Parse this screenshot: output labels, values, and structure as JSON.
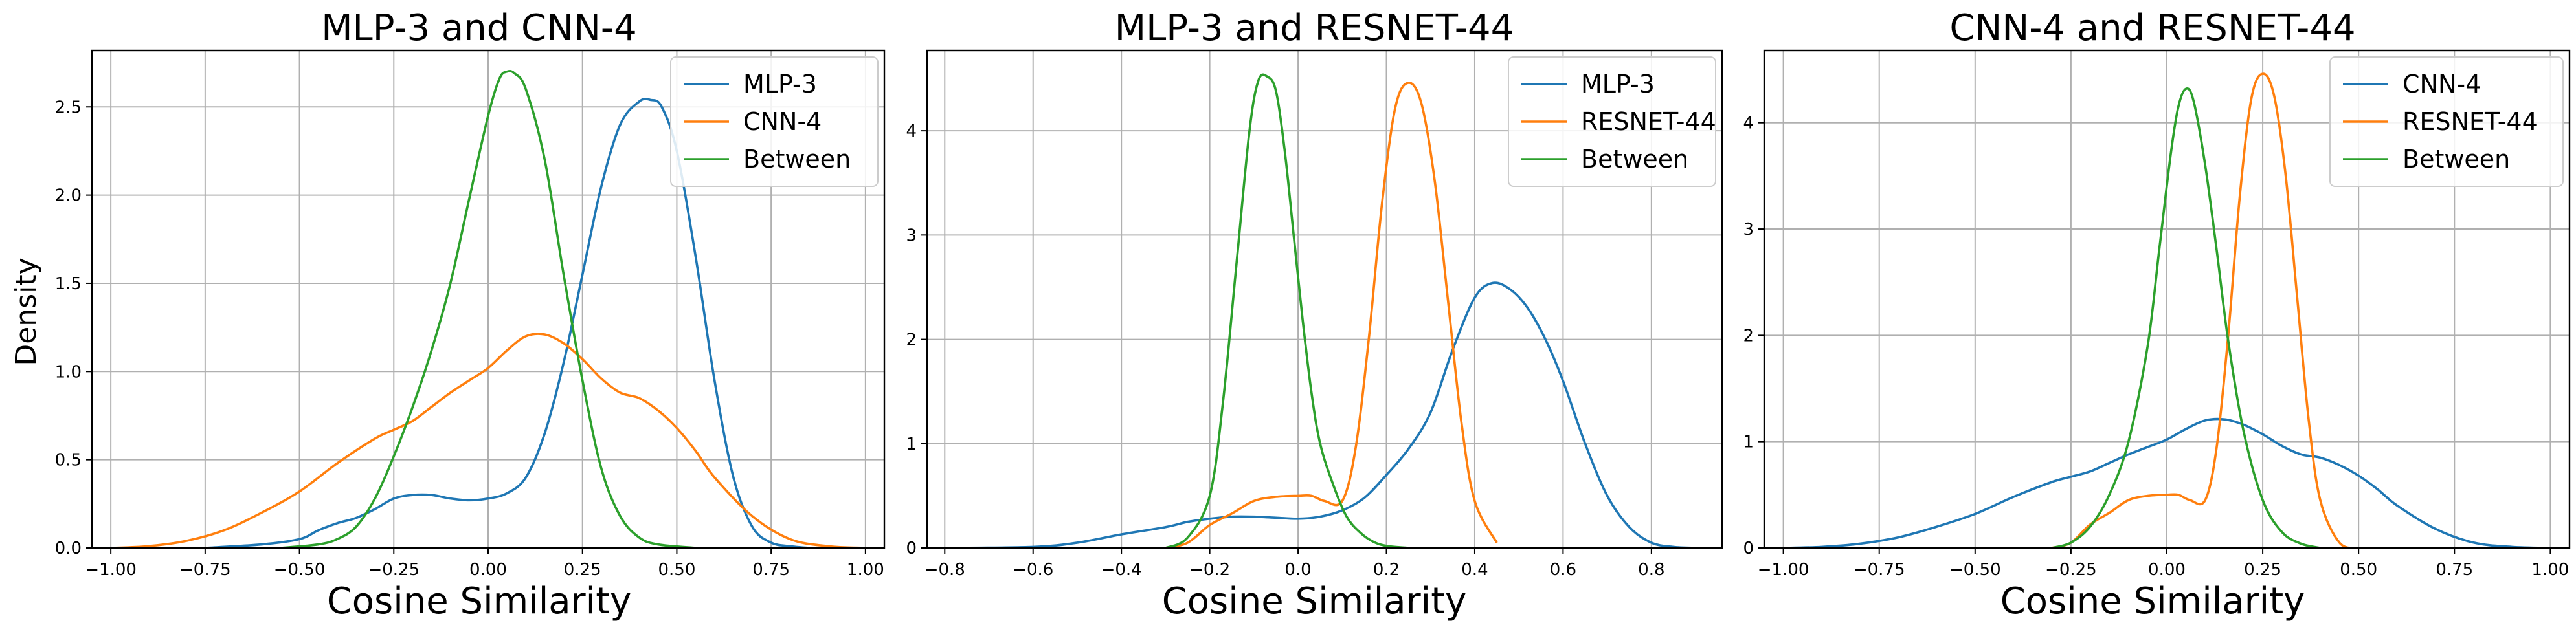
{
  "chart_data": [
    {
      "type": "line",
      "title": "MLP-3 and CNN-4",
      "xlabel": "Cosine Similarity",
      "ylabel": "Density",
      "xlim": [
        -1.05,
        1.05
      ],
      "ylim": [
        0,
        2.82
      ],
      "xticks": [
        -1.0,
        -0.75,
        -0.5,
        -0.25,
        0.0,
        0.25,
        0.5,
        0.75,
        1.0
      ],
      "xtick_labels": [
        "−1.00",
        "−0.75",
        "−0.50",
        "−0.25",
        "0.00",
        "0.25",
        "0.50",
        "0.75",
        "1.00"
      ],
      "yticks": [
        0.0,
        0.5,
        1.0,
        1.5,
        2.0,
        2.5
      ],
      "ytick_labels": [
        "0.0",
        "0.5",
        "1.0",
        "1.5",
        "2.0",
        "2.5"
      ],
      "grid": true,
      "legend_position": "top-right",
      "series": [
        {
          "name": "MLP-3",
          "color": "#1f77b4",
          "x": [
            -0.75,
            -0.6,
            -0.5,
            -0.45,
            -0.4,
            -0.35,
            -0.3,
            -0.25,
            -0.2,
            -0.15,
            -0.1,
            -0.05,
            0.0,
            0.05,
            0.1,
            0.15,
            0.2,
            0.25,
            0.3,
            0.35,
            0.4,
            0.43,
            0.46,
            0.5,
            0.55,
            0.6,
            0.65,
            0.7,
            0.75,
            0.8,
            0.85
          ],
          "y": [
            0.0,
            0.02,
            0.05,
            0.1,
            0.14,
            0.17,
            0.22,
            0.28,
            0.3,
            0.3,
            0.28,
            0.27,
            0.28,
            0.31,
            0.4,
            0.65,
            1.05,
            1.55,
            2.05,
            2.4,
            2.53,
            2.54,
            2.5,
            2.25,
            1.65,
            0.95,
            0.4,
            0.12,
            0.03,
            0.01,
            0.0
          ]
        },
        {
          "name": "CNN-4",
          "color": "#ff7f0e",
          "x": [
            -1.0,
            -0.9,
            -0.8,
            -0.7,
            -0.6,
            -0.5,
            -0.4,
            -0.3,
            -0.25,
            -0.2,
            -0.15,
            -0.1,
            -0.05,
            0.0,
            0.05,
            0.1,
            0.15,
            0.2,
            0.25,
            0.3,
            0.35,
            0.4,
            0.45,
            0.5,
            0.55,
            0.6,
            0.7,
            0.8,
            0.9,
            1.0
          ],
          "y": [
            0.0,
            0.01,
            0.04,
            0.1,
            0.2,
            0.32,
            0.48,
            0.62,
            0.67,
            0.72,
            0.8,
            0.88,
            0.95,
            1.02,
            1.12,
            1.2,
            1.21,
            1.16,
            1.07,
            0.96,
            0.88,
            0.85,
            0.78,
            0.68,
            0.55,
            0.4,
            0.18,
            0.05,
            0.01,
            0.0
          ]
        },
        {
          "name": "Between",
          "color": "#2ca02c",
          "x": [
            -0.55,
            -0.45,
            -0.4,
            -0.35,
            -0.3,
            -0.25,
            -0.2,
            -0.15,
            -0.1,
            -0.05,
            0.0,
            0.03,
            0.05,
            0.07,
            0.1,
            0.15,
            0.2,
            0.25,
            0.3,
            0.35,
            0.4,
            0.45,
            0.55
          ],
          "y": [
            0.0,
            0.02,
            0.05,
            0.12,
            0.28,
            0.52,
            0.8,
            1.12,
            1.5,
            1.98,
            2.45,
            2.66,
            2.7,
            2.69,
            2.6,
            2.2,
            1.55,
            0.95,
            0.45,
            0.18,
            0.06,
            0.02,
            0.0
          ]
        }
      ]
    },
    {
      "type": "line",
      "title": "MLP-3 and RESNET-44",
      "xlabel": "Cosine Similarity",
      "ylabel": "",
      "xlim": [
        -0.84,
        0.96
      ],
      "ylim": [
        0,
        4.77
      ],
      "xticks": [
        -0.8,
        -0.6,
        -0.4,
        -0.2,
        0.0,
        0.2,
        0.4,
        0.6,
        0.8
      ],
      "xtick_labels": [
        "−0.8",
        "−0.6",
        "−0.4",
        "−0.2",
        "0.0",
        "0.2",
        "0.4",
        "0.6",
        "0.8"
      ],
      "yticks": [
        0,
        1,
        2,
        3,
        4
      ],
      "ytick_labels": [
        "0",
        "1",
        "2",
        "3",
        "4"
      ],
      "grid": true,
      "legend_position": "top-right",
      "series": [
        {
          "name": "MLP-3",
          "color": "#1f77b4",
          "x": [
            -0.8,
            -0.6,
            -0.5,
            -0.4,
            -0.3,
            -0.25,
            -0.2,
            -0.15,
            -0.1,
            -0.05,
            0.0,
            0.05,
            0.1,
            0.15,
            0.2,
            0.25,
            0.3,
            0.35,
            0.4,
            0.44,
            0.48,
            0.52,
            0.56,
            0.6,
            0.65,
            0.7,
            0.75,
            0.8,
            0.85,
            0.9
          ],
          "y": [
            0.0,
            0.01,
            0.05,
            0.13,
            0.2,
            0.25,
            0.28,
            0.3,
            0.3,
            0.29,
            0.28,
            0.3,
            0.36,
            0.48,
            0.7,
            0.95,
            1.3,
            1.9,
            2.4,
            2.54,
            2.48,
            2.3,
            2.0,
            1.6,
            1.0,
            0.5,
            0.2,
            0.05,
            0.01,
            0.0
          ]
        },
        {
          "name": "RESNET-44",
          "color": "#ff7f0e",
          "x": [
            -0.3,
            -0.25,
            -0.2,
            -0.15,
            -0.1,
            -0.05,
            0.0,
            0.03,
            0.06,
            0.1,
            0.13,
            0.16,
            0.19,
            0.22,
            0.25,
            0.28,
            0.31,
            0.34,
            0.37,
            0.4,
            0.45
          ],
          "y": [
            0.0,
            0.05,
            0.22,
            0.33,
            0.45,
            0.49,
            0.5,
            0.5,
            0.45,
            0.45,
            0.95,
            2.0,
            3.3,
            4.22,
            4.46,
            4.25,
            3.5,
            2.35,
            1.2,
            0.45,
            0.05
          ]
        },
        {
          "name": "Between",
          "color": "#2ca02c",
          "x": [
            -0.3,
            -0.25,
            -0.2,
            -0.17,
            -0.14,
            -0.11,
            -0.09,
            -0.07,
            -0.05,
            -0.03,
            -0.01,
            0.01,
            0.03,
            0.05,
            0.08,
            0.11,
            0.14,
            0.17,
            0.2,
            0.25
          ],
          "y": [
            0.0,
            0.1,
            0.5,
            1.4,
            2.7,
            4.0,
            4.48,
            4.52,
            4.38,
            3.8,
            3.0,
            2.2,
            1.5,
            1.0,
            0.6,
            0.3,
            0.15,
            0.06,
            0.02,
            0.0
          ]
        }
      ]
    },
    {
      "type": "line",
      "title": "CNN-4 and RESNET-44",
      "xlabel": "Cosine Similarity",
      "ylabel": "",
      "xlim": [
        -1.05,
        1.05
      ],
      "ylim": [
        0,
        4.68
      ],
      "xticks": [
        -1.0,
        -0.75,
        -0.5,
        -0.25,
        0.0,
        0.25,
        0.5,
        0.75,
        1.0
      ],
      "xtick_labels": [
        "−1.00",
        "−0.75",
        "−0.50",
        "−0.25",
        "0.00",
        "0.25",
        "0.50",
        "0.75",
        "1.00"
      ],
      "yticks": [
        0,
        1,
        2,
        3,
        4
      ],
      "ytick_labels": [
        "0",
        "1",
        "2",
        "3",
        "4"
      ],
      "grid": true,
      "legend_position": "top-right",
      "series": [
        {
          "name": "CNN-4",
          "color": "#1f77b4",
          "x": [
            -1.0,
            -0.9,
            -0.8,
            -0.7,
            -0.6,
            -0.5,
            -0.4,
            -0.3,
            -0.25,
            -0.2,
            -0.15,
            -0.1,
            -0.05,
            0.0,
            0.05,
            0.1,
            0.15,
            0.2,
            0.25,
            0.3,
            0.35,
            0.4,
            0.45,
            0.5,
            0.55,
            0.6,
            0.7,
            0.8,
            0.9,
            1.0
          ],
          "y": [
            0.0,
            0.01,
            0.04,
            0.1,
            0.2,
            0.32,
            0.48,
            0.62,
            0.67,
            0.72,
            0.8,
            0.88,
            0.95,
            1.02,
            1.12,
            1.2,
            1.21,
            1.16,
            1.07,
            0.96,
            0.88,
            0.85,
            0.78,
            0.68,
            0.55,
            0.4,
            0.18,
            0.05,
            0.01,
            0.0
          ]
        },
        {
          "name": "RESNET-44",
          "color": "#ff7f0e",
          "x": [
            -0.3,
            -0.25,
            -0.2,
            -0.15,
            -0.1,
            -0.05,
            0.0,
            0.03,
            0.06,
            0.1,
            0.13,
            0.16,
            0.19,
            0.22,
            0.25,
            0.28,
            0.31,
            0.34,
            0.37,
            0.4,
            0.45,
            0.5
          ],
          "y": [
            0.0,
            0.05,
            0.22,
            0.33,
            0.45,
            0.49,
            0.5,
            0.5,
            0.45,
            0.45,
            0.95,
            2.0,
            3.3,
            4.22,
            4.46,
            4.25,
            3.5,
            2.35,
            1.2,
            0.45,
            0.05,
            0.0
          ]
        },
        {
          "name": "Between",
          "color": "#2ca02c",
          "x": [
            -0.3,
            -0.25,
            -0.2,
            -0.15,
            -0.1,
            -0.05,
            -0.02,
            0.01,
            0.03,
            0.05,
            0.07,
            0.1,
            0.13,
            0.16,
            0.2,
            0.25,
            0.3,
            0.35,
            0.4
          ],
          "y": [
            0.0,
            0.05,
            0.2,
            0.5,
            1.0,
            1.9,
            2.8,
            3.7,
            4.15,
            4.32,
            4.2,
            3.6,
            2.8,
            1.95,
            1.1,
            0.45,
            0.15,
            0.04,
            0.0
          ]
        }
      ]
    }
  ]
}
